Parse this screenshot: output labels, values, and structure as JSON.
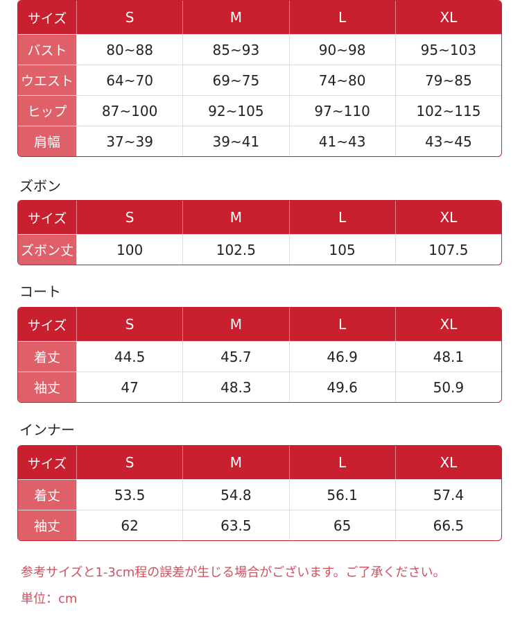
{
  "colors": {
    "header": "#c8202f",
    "label_column": "#e0606a",
    "note_text": "#d05060"
  },
  "tables": [
    {
      "title": "",
      "headers": [
        "サイズ",
        "S",
        "M",
        "L",
        "XL"
      ],
      "rows": [
        [
          "バスト",
          "80~88",
          "85~93",
          "90~98",
          "95~103"
        ],
        [
          "ウエスト",
          "64~70",
          "69~75",
          "74~80",
          "79~85"
        ],
        [
          "ヒップ",
          "87~100",
          "92~105",
          "97~110",
          "102~115"
        ],
        [
          "肩幅",
          "37~39",
          "39~41",
          "41~43",
          "43~45"
        ]
      ]
    },
    {
      "title": "ズボン",
      "headers": [
        "サイズ",
        "S",
        "M",
        "L",
        "XL"
      ],
      "rows": [
        [
          "ズボン丈",
          "100",
          "102.5",
          "105",
          "107.5"
        ]
      ]
    },
    {
      "title": "コート",
      "headers": [
        "サイズ",
        "S",
        "M",
        "L",
        "XL"
      ],
      "rows": [
        [
          "着丈",
          "44.5",
          "45.7",
          "46.9",
          "48.1"
        ],
        [
          "袖丈",
          "47",
          "48.3",
          "49.6",
          "50.9"
        ]
      ]
    },
    {
      "title": "インナー",
      "headers": [
        "サイズ",
        "S",
        "M",
        "L",
        "XL"
      ],
      "rows": [
        [
          "着丈",
          "53.5",
          "54.8",
          "56.1",
          "57.4"
        ],
        [
          "袖丈",
          "62",
          "63.5",
          "65",
          "66.5"
        ]
      ]
    }
  ],
  "notes": {
    "tolerance": "参考サイズと1-3cm程の誤差が生じる場合がございます。ご了承ください。",
    "unit": "単位：cm"
  }
}
